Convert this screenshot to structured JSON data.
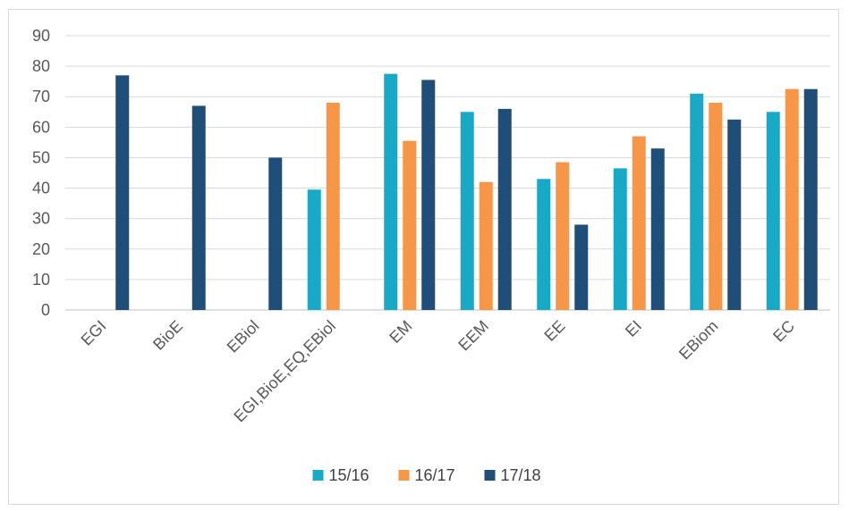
{
  "chart_data": {
    "type": "bar",
    "categories": [
      "EGI",
      "BioE",
      "EBiol",
      "EGI,BioE,EQ,EBiol",
      "EM",
      "EEM",
      "EE",
      "EI",
      "EBiom",
      "EC"
    ],
    "series": [
      {
        "name": "15/16",
        "color": "#17a9c6",
        "values": [
          null,
          null,
          null,
          39.5,
          77.5,
          65,
          43,
          46.5,
          71,
          65
        ]
      },
      {
        "name": "16/17",
        "color": "#f79646",
        "values": [
          null,
          null,
          null,
          68,
          55.5,
          42,
          48.5,
          57,
          68,
          72.5
        ]
      },
      {
        "name": "17/18",
        "color": "#1f4e79",
        "values": [
          77,
          67,
          50,
          null,
          75.5,
          66,
          28,
          53,
          62.5,
          72.5
        ]
      }
    ],
    "title": "",
    "xlabel": "",
    "ylabel": "",
    "ylim": [
      0,
      90
    ],
    "yticks": [
      0,
      10,
      20,
      30,
      40,
      50,
      60,
      70,
      80,
      90
    ],
    "grid": true,
    "legend_position": "bottom"
  }
}
